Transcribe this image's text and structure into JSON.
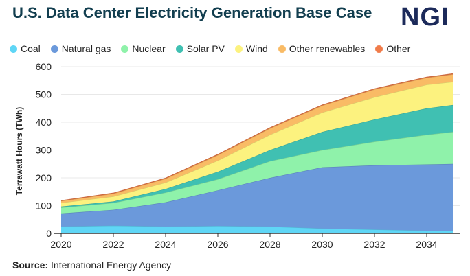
{
  "title": "U.S. Data Center Electricity Generation Base Case",
  "logo": "NGI",
  "source_label": "Source:",
  "source_text": "International Energy Agency",
  "chart_data": {
    "type": "area",
    "stacked": true,
    "title": "U.S. Data Center Electricity Generation Base Case",
    "xlabel": "",
    "ylabel": "Terrawatt Hours (TWh)",
    "x": [
      2020,
      2022,
      2024,
      2026,
      2028,
      2030,
      2032,
      2034,
      2035
    ],
    "xticks": [
      2020,
      2022,
      2024,
      2026,
      2028,
      2030,
      2032,
      2034
    ],
    "yticks": [
      0,
      100,
      200,
      300,
      400,
      500,
      600
    ],
    "xlim": [
      2020,
      2035
    ],
    "ylim": [
      0,
      600
    ],
    "grid": true,
    "legend": "top",
    "series": [
      {
        "name": "Coal",
        "color": "#5fd6f6",
        "values": [
          25,
          28,
          25,
          27,
          25,
          18,
          14,
          10,
          9
        ]
      },
      {
        "name": "Natural gas",
        "color": "#6b99db",
        "values": [
          47,
          57,
          87,
          128,
          175,
          220,
          231,
          238,
          241
        ]
      },
      {
        "name": "Nuclear",
        "color": "#8ff2aa",
        "values": [
          21,
          25,
          35,
          40,
          60,
          62,
          85,
          107,
          115
        ]
      },
      {
        "name": "Solar PV",
        "color": "#40c0b2",
        "values": [
          4,
          5,
          13,
          27,
          40,
          65,
          80,
          95,
          97
        ]
      },
      {
        "name": "Wind",
        "color": "#fcf27f",
        "values": [
          13,
          18,
          23,
          40,
          55,
          70,
          80,
          85,
          83
        ]
      },
      {
        "name": "Other renewables",
        "color": "#f9bb65",
        "values": [
          7,
          10,
          14,
          20,
          23,
          25,
          28,
          25,
          27
        ]
      },
      {
        "name": "Other",
        "color": "#f07c4a",
        "values": [
          1,
          2,
          2,
          2,
          2,
          2,
          2,
          2,
          2
        ]
      }
    ]
  }
}
